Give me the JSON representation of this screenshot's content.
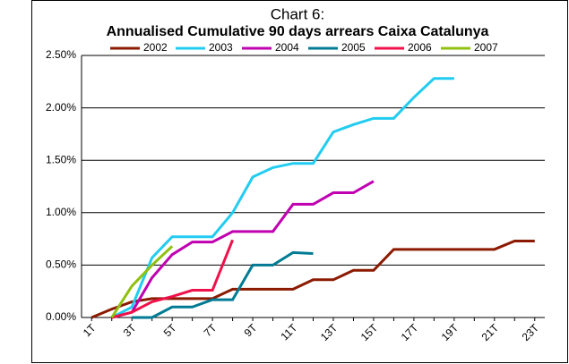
{
  "chart_data": {
    "type": "line",
    "title": "Chart 6:",
    "subtitle": "Annualised Cumulative 90 days arrears Caixa Catalunya",
    "categories": [
      "1T",
      null,
      "3T",
      null,
      "5T",
      null,
      "7T",
      null,
      "9T",
      null,
      "11T",
      null,
      "13T",
      null,
      "15T",
      null,
      "17T",
      null,
      "19T",
      null,
      "21T",
      null,
      "23T"
    ],
    "series": [
      {
        "name": "2002",
        "color": "#8b1a00",
        "values": [
          0,
          0.08,
          0.15,
          0.18,
          0.18,
          0.18,
          0.18,
          0.27,
          0.27,
          0.27,
          0.27,
          0.36,
          0.36,
          0.45,
          0.45,
          0.65,
          0.65,
          0.65,
          0.65,
          0.65,
          0.65,
          0.73,
          0.73
        ]
      },
      {
        "name": "2003",
        "color": "#22ccf0",
        "values": [
          null,
          0,
          0.1,
          0.57,
          0.77,
          0.77,
          0.77,
          1.0,
          1.34,
          1.43,
          1.47,
          1.47,
          1.77,
          1.84,
          1.9,
          1.9,
          2.1,
          2.28,
          2.28,
          null,
          null,
          null,
          null
        ]
      },
      {
        "name": "2004",
        "color": "#c000b0",
        "values": [
          null,
          0,
          0.05,
          0.38,
          0.6,
          0.72,
          0.72,
          0.82,
          0.82,
          0.82,
          1.08,
          1.08,
          1.19,
          1.19,
          1.3,
          null,
          null,
          null,
          null,
          null,
          null,
          null,
          null
        ]
      },
      {
        "name": "2005",
        "color": "#007b93",
        "values": [
          null,
          null,
          0,
          0,
          0.1,
          0.1,
          0.17,
          0.17,
          0.5,
          0.5,
          0.62,
          0.61,
          null,
          null,
          null,
          null,
          null,
          null,
          null,
          null,
          null,
          null,
          null
        ]
      },
      {
        "name": "2006",
        "color": "#f0104a",
        "values": [
          null,
          0,
          0.05,
          0.15,
          0.2,
          0.26,
          0.26,
          0.74,
          null,
          null,
          null,
          null,
          null,
          null,
          null,
          null,
          null,
          null,
          null,
          null,
          null,
          null,
          null
        ]
      },
      {
        "name": "2007",
        "color": "#90c010",
        "values": [
          null,
          0,
          0.3,
          0.5,
          0.68,
          null,
          null,
          null,
          null,
          null,
          null,
          null,
          null,
          null,
          null,
          null,
          null,
          null,
          null,
          null,
          null,
          null,
          null
        ]
      }
    ],
    "ylim": [
      0,
      2.5
    ],
    "yticks": [
      {
        "value": 0,
        "label": "0.00%"
      },
      {
        "value": 0.5,
        "label": "0.50%"
      },
      {
        "value": 1,
        "label": "1.00%"
      },
      {
        "value": 1.5,
        "label": "1.50%"
      },
      {
        "value": 2,
        "label": "2.00%"
      },
      {
        "value": 2.5,
        "label": "2.50%"
      }
    ],
    "grid": true
  }
}
